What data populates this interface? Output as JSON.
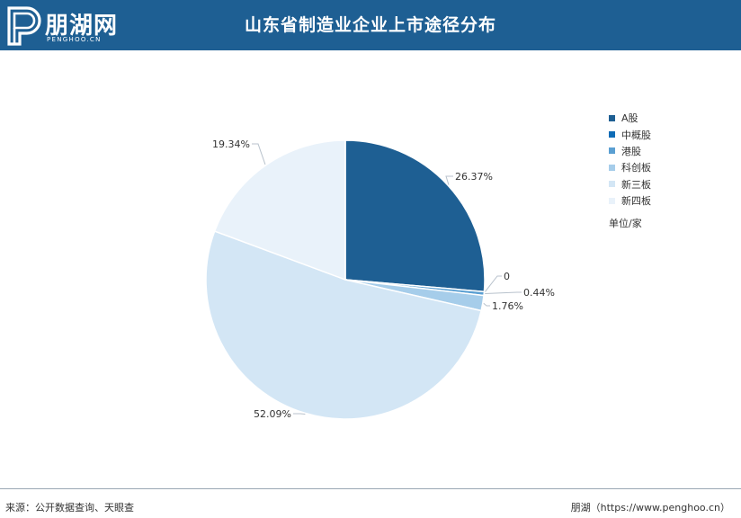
{
  "header": {
    "logo_text": "朋湖网",
    "logo_sub": "PENGHOO.CN",
    "title": "山东省制造业企业上市途径分布"
  },
  "chart_data": {
    "type": "pie",
    "title": "山东省制造业企业上市途径分布",
    "unit": "单位/家",
    "legend_position": "top-right",
    "slices": [
      {
        "name": "A股",
        "value": 26.37,
        "label": "26.37%",
        "color": "#1e5f93"
      },
      {
        "name": "中概股",
        "value": 0,
        "label": "0",
        "color": "#0f6cb6"
      },
      {
        "name": "港股",
        "value": 0.44,
        "label": "0.44%",
        "color": "#5a9fd2"
      },
      {
        "name": "科创板",
        "value": 1.76,
        "label": "1.76%",
        "color": "#a6cdea"
      },
      {
        "name": "新三板",
        "value": 52.09,
        "label": "52.09%",
        "color": "#d3e6f5"
      },
      {
        "name": "新四板",
        "value": 19.34,
        "label": "19.34%",
        "color": "#e9f2fa"
      }
    ]
  },
  "footer": {
    "source": "来源：公开数据查询、天眼查",
    "brand": "朋湖（https://www.penghoo.cn）"
  }
}
